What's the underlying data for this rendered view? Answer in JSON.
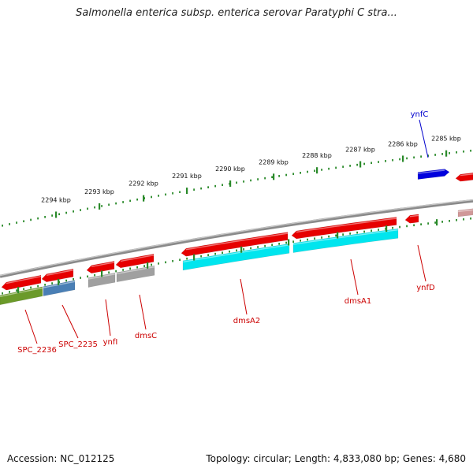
{
  "title": "Salmonella enterica subsp. enterica serovar Paratyphi C stra...",
  "footer": {
    "accession": "Accession: NC_012125",
    "summary": "Topology: circular; Length: 4,833,080 bp; Genes: 4,680"
  },
  "colors": {
    "forward_gene": "#e60000",
    "forward_gene_blue": "#0000dd",
    "reverse_gene": "#e60000",
    "reverse_gene_pale": "#d09898",
    "cds_cyan": "#00e5ee",
    "cds_olive": "#6b9a2a",
    "cds_steel": "#4a7fb5",
    "cds_gray": "#a0a0a0",
    "backbone": "#8a8a8a",
    "ticks": "#2a8a2a",
    "label_forward": "#0000cc",
    "label_reverse": "#cc0000"
  },
  "ruler": {
    "unit": "kbp",
    "labels": [
      "2294 kbp",
      "2293 kbp",
      "2292 kbp",
      "2291 kbp",
      "2290 kbp",
      "2289 kbp",
      "2288 kbp",
      "2287 kbp",
      "2286 kbp",
      "2285 kbp"
    ]
  },
  "genes_forward": [
    {
      "name": "ynfC",
      "color": "#0000dd"
    }
  ],
  "genes_reverse": [
    {
      "name": "SPC_2236"
    },
    {
      "name": "SPC_2235"
    },
    {
      "name": "ynfI"
    },
    {
      "name": "dmsC"
    },
    {
      "name": "dmsA2"
    },
    {
      "name": "dmsA1"
    },
    {
      "name": "ynfD"
    }
  ]
}
